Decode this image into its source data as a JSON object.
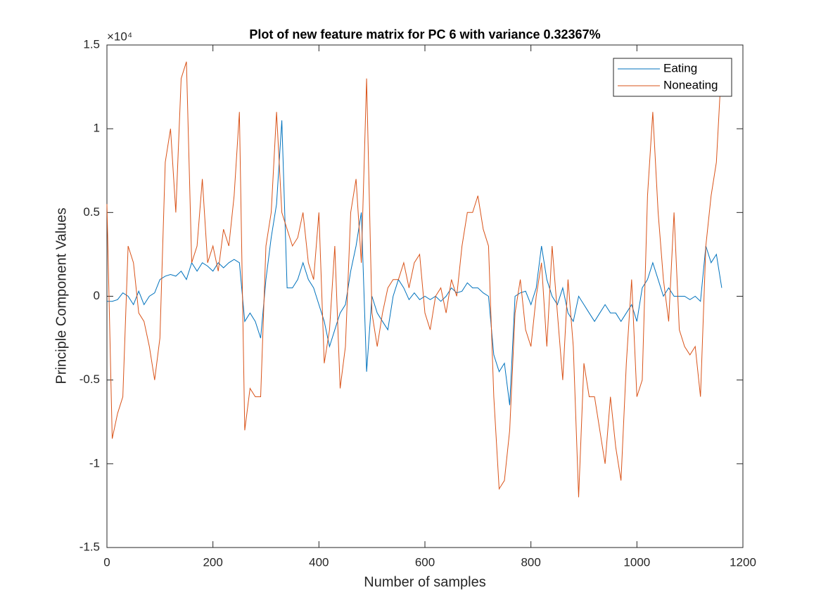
{
  "chart_data": {
    "type": "line",
    "title": "Plot of new feature matrix for PC 6 with variance 0.32367%",
    "xlabel": "Number of samples",
    "ylabel": "Principle Component Values",
    "y_exponent": "×10⁴",
    "x": [
      0,
      10,
      20,
      30,
      40,
      50,
      60,
      70,
      80,
      90,
      100,
      110,
      120,
      130,
      140,
      150,
      160,
      170,
      180,
      190,
      200,
      210,
      220,
      230,
      240,
      250,
      260,
      270,
      280,
      290,
      300,
      310,
      320,
      330,
      340,
      350,
      360,
      370,
      380,
      390,
      400,
      410,
      420,
      430,
      440,
      450,
      460,
      470,
      480,
      490,
      500,
      510,
      520,
      530,
      540,
      550,
      560,
      570,
      580,
      590,
      600,
      610,
      620,
      630,
      640,
      650,
      660,
      670,
      680,
      690,
      700,
      710,
      720,
      730,
      740,
      750,
      760,
      770,
      780,
      790,
      800,
      810,
      820,
      830,
      840,
      850,
      860,
      870,
      880,
      890,
      900,
      910,
      920,
      930,
      940,
      950,
      960,
      970,
      980,
      990,
      1000,
      1010,
      1020,
      1030,
      1040,
      1050,
      1060,
      1070,
      1080,
      1090,
      1100,
      1110,
      1120,
      1130,
      1140,
      1150,
      1160
    ],
    "series": [
      {
        "name": "Eating",
        "color": "#0072BD",
        "values": [
          -0.03,
          -0.03,
          -0.02,
          0.02,
          0.0,
          -0.05,
          0.03,
          -0.05,
          0.0,
          0.02,
          0.1,
          0.12,
          0.13,
          0.12,
          0.15,
          0.1,
          0.2,
          0.15,
          0.2,
          0.18,
          0.15,
          0.2,
          0.17,
          0.2,
          0.22,
          0.2,
          -0.15,
          -0.1,
          -0.15,
          -0.25,
          0.1,
          0.35,
          0.55,
          1.05,
          0.05,
          0.05,
          0.1,
          0.2,
          0.1,
          0.05,
          -0.05,
          -0.15,
          -0.3,
          -0.2,
          -0.1,
          -0.05,
          0.15,
          0.3,
          0.5,
          -0.45,
          0.0,
          -0.1,
          -0.15,
          -0.2,
          0.0,
          0.1,
          0.05,
          -0.02,
          0.02,
          -0.02,
          0.0,
          -0.02,
          0.0,
          -0.03,
          0.0,
          0.05,
          0.02,
          0.03,
          0.08,
          0.05,
          0.05,
          0.02,
          0.0,
          -0.35,
          -0.45,
          -0.4,
          -0.65,
          0.0,
          0.02,
          0.03,
          -0.05,
          0.05,
          0.3,
          0.1,
          0.0,
          -0.05,
          0.05,
          -0.1,
          -0.15,
          0.0,
          -0.05,
          -0.1,
          -0.15,
          -0.1,
          -0.05,
          -0.1,
          -0.1,
          -0.15,
          -0.1,
          -0.05,
          -0.15,
          0.05,
          0.1,
          0.2,
          0.1,
          0.0,
          0.05,
          0.0,
          0.0,
          0.0,
          -0.02,
          0.0,
          -0.03,
          0.3,
          0.2,
          0.25,
          0.05
        ]
      },
      {
        "name": "Noneating",
        "color": "#D95319",
        "values": [
          0.55,
          -0.85,
          -0.7,
          -0.6,
          0.3,
          0.2,
          -0.1,
          -0.15,
          -0.3,
          -0.5,
          -0.25,
          0.8,
          1.0,
          0.5,
          1.3,
          1.4,
          0.2,
          0.3,
          0.7,
          0.2,
          0.3,
          0.15,
          0.4,
          0.3,
          0.6,
          1.1,
          -0.8,
          -0.55,
          -0.6,
          -0.6,
          0.3,
          0.5,
          1.1,
          0.5,
          0.4,
          0.3,
          0.35,
          0.5,
          0.2,
          0.1,
          0.5,
          -0.4,
          -0.2,
          0.3,
          -0.55,
          -0.3,
          0.5,
          0.7,
          0.2,
          1.3,
          -0.1,
          -0.3,
          -0.1,
          0.05,
          0.1,
          0.1,
          0.2,
          0.05,
          0.2,
          0.25,
          -0.1,
          -0.2,
          0.0,
          0.05,
          -0.1,
          0.1,
          0.0,
          0.3,
          0.5,
          0.5,
          0.6,
          0.4,
          0.3,
          -0.6,
          -1.15,
          -1.1,
          -0.8,
          -0.1,
          0.1,
          -0.2,
          -0.3,
          0.0,
          0.2,
          -0.3,
          0.3,
          -0.1,
          -0.5,
          0.1,
          -0.3,
          -1.2,
          -0.4,
          -0.6,
          -0.6,
          -0.8,
          -1.0,
          -0.6,
          -0.9,
          -1.1,
          -0.4,
          0.1,
          -0.6,
          -0.5,
          0.6,
          1.1,
          0.5,
          0.1,
          -0.15,
          0.5,
          -0.2,
          -0.3,
          -0.35,
          -0.3,
          -0.6,
          0.3,
          0.6,
          0.8,
          1.4
        ]
      }
    ],
    "xlim": [
      0,
      1200
    ],
    "xticks": [
      0,
      200,
      400,
      600,
      800,
      1000,
      1200
    ],
    "ylim": [
      -1.5,
      1.5
    ],
    "yticks": [
      -1.5,
      -1,
      -0.5,
      0,
      0.5,
      1,
      1.5
    ],
    "legend": "northeast",
    "grid": false
  }
}
